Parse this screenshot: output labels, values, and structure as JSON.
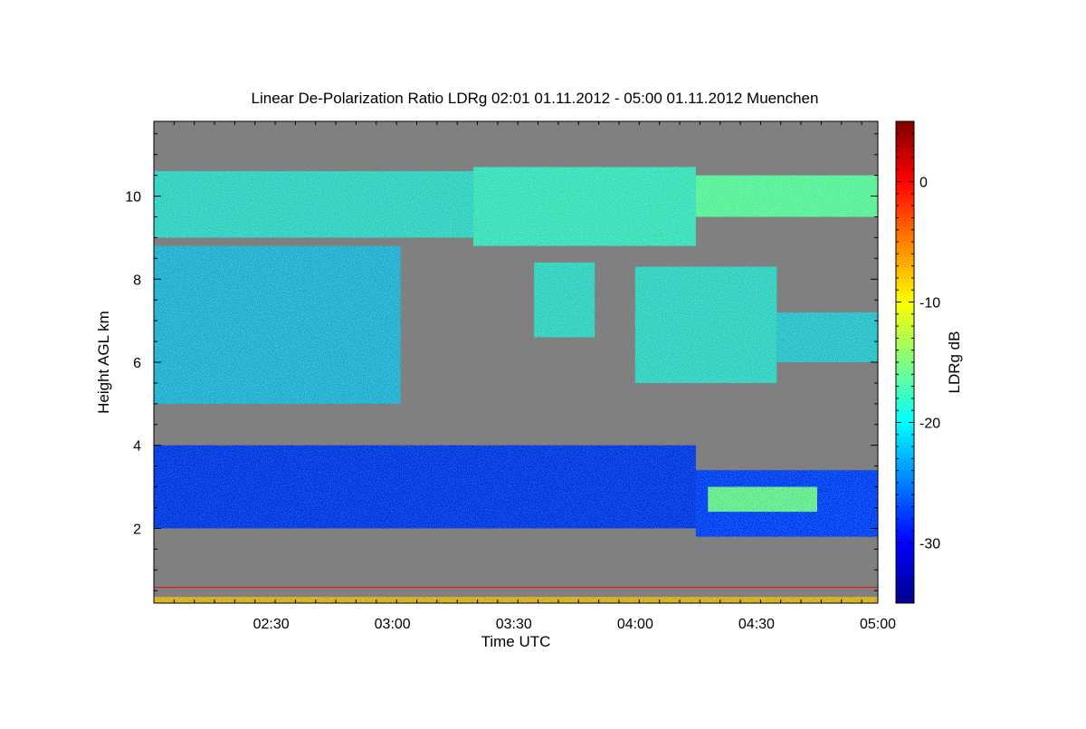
{
  "chart_data": {
    "type": "heatmap",
    "title": "Linear De-Polarization Ratio LDRg   02:01 01.11.2012 - 05:00 01.11.2012 Muenchen",
    "xlabel": "Time UTC",
    "ylabel": "Height AGL km",
    "colorbar_label": "LDRg dB",
    "xlim": [
      "02:01",
      "05:00"
    ],
    "x_ticks": [
      "02:30",
      "03:00",
      "03:30",
      "04:00",
      "04:30",
      "05:00"
    ],
    "ylim": [
      0.2,
      11.8
    ],
    "y_ticks": [
      2,
      4,
      6,
      8,
      10
    ],
    "colorbar_range": [
      -35,
      5
    ],
    "colorbar_ticks": [
      0,
      -10,
      -20,
      -30
    ],
    "colormap": "jet",
    "background_color": "#808080",
    "layers": [
      {
        "t0": "02:01",
        "t1": "03:20",
        "h0": 9.0,
        "h1": 10.6,
        "ldr": -22
      },
      {
        "t0": "03:20",
        "t1": "04:15",
        "h0": 8.8,
        "h1": 10.7,
        "ldr": -21
      },
      {
        "t0": "04:15",
        "t1": "05:00",
        "h0": 9.5,
        "h1": 10.5,
        "ldr": -19
      },
      {
        "t0": "02:01",
        "t1": "03:02",
        "h0": 5.0,
        "h1": 8.8,
        "ldr": -24
      },
      {
        "t0": "03:35",
        "t1": "03:50",
        "h0": 6.6,
        "h1": 8.4,
        "ldr": -22
      },
      {
        "t0": "04:00",
        "t1": "04:35",
        "h0": 5.5,
        "h1": 8.3,
        "ldr": -22
      },
      {
        "t0": "04:35",
        "t1": "05:00",
        "h0": 6.0,
        "h1": 7.2,
        "ldr": -23
      },
      {
        "t0": "02:01",
        "t1": "04:15",
        "h0": 2.0,
        "h1": 4.0,
        "ldr": -31
      },
      {
        "t0": "04:15",
        "t1": "05:00",
        "h0": 1.8,
        "h1": 3.4,
        "ldr": -30
      },
      {
        "t0": "04:18",
        "t1": "04:45",
        "h0": 2.4,
        "h1": 3.0,
        "ldr": -18
      }
    ]
  }
}
